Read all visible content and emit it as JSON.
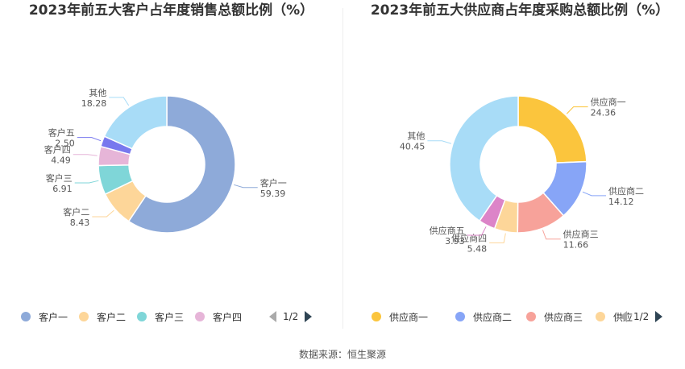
{
  "source": "数据来源：恒生聚源",
  "chart_data": [
    {
      "type": "pie",
      "donut": true,
      "title": "2023年前五大客户占年度销售总额比例（%）",
      "slices": [
        {
          "name": "客户一",
          "value": 59.39,
          "color": "#8eaad9"
        },
        {
          "name": "客户二",
          "value": 8.43,
          "color": "#fdd699"
        },
        {
          "name": "客户三",
          "value": 6.91,
          "color": "#7fd6d8"
        },
        {
          "name": "客户四",
          "value": 4.49,
          "color": "#e6b5d8"
        },
        {
          "name": "客户五",
          "value": 2.5,
          "color": "#7878ee"
        },
        {
          "name": "其他",
          "value": 18.28,
          "color": "#a8dcf7"
        }
      ],
      "legend": {
        "visible": [
          "客户一",
          "客户二",
          "客户三",
          "客户四"
        ],
        "page": "1/2",
        "placement": "bottom"
      }
    },
    {
      "type": "pie",
      "donut": true,
      "title": "2023年前五大供应商占年度采购总额比例（%）",
      "slices": [
        {
          "name": "供应商一",
          "value": 24.36,
          "color": "#fbc53d"
        },
        {
          "name": "供应商二",
          "value": 14.12,
          "color": "#87a5f7"
        },
        {
          "name": "供应商三",
          "value": 11.66,
          "color": "#f7a29a"
        },
        {
          "name": "供应商四",
          "value": 5.48,
          "color": "#fdd699"
        },
        {
          "name": "供应商五",
          "value": 3.93,
          "color": "#dc84c8"
        },
        {
          "name": "其他",
          "value": 40.45,
          "color": "#a8dcf7"
        }
      ],
      "legend": {
        "visible": [
          "供应商一",
          "供应商二",
          "供应商三",
          "供应"
        ],
        "page": "1/2",
        "placement": "bottom"
      }
    }
  ]
}
